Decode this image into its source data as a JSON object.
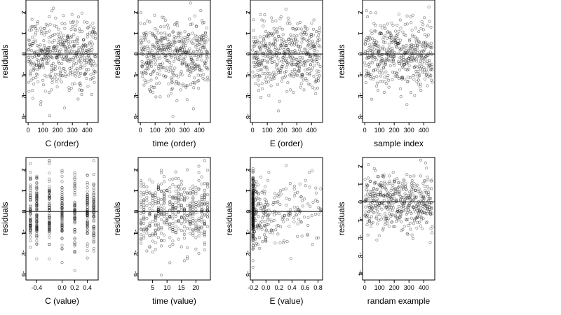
{
  "chart_data": [
    {
      "type": "scatter",
      "xlabel": "C (order)",
      "ylabel": "residuals",
      "x_ticks": [
        "0",
        "100",
        "200",
        "300",
        "400"
      ],
      "y_ticks": [
        "-3",
        "-2",
        "-1",
        "0",
        "1",
        "2"
      ],
      "xlim": [
        -15,
        475
      ],
      "ylim": [
        -3.3,
        2.6
      ],
      "ref_y": 0,
      "n": 460,
      "pattern": "index",
      "points": []
    },
    {
      "type": "scatter",
      "xlabel": "time (order)",
      "ylabel": "residuals",
      "x_ticks": [
        "0",
        "100",
        "200",
        "300",
        "400"
      ],
      "y_ticks": [
        "-3",
        "-2",
        "-1",
        "0",
        "1",
        "2"
      ],
      "xlim": [
        -15,
        475
      ],
      "ylim": [
        -3.3,
        2.6
      ],
      "ref_y": 0,
      "n": 460,
      "pattern": "index",
      "points": []
    },
    {
      "type": "scatter",
      "xlabel": "E (order)",
      "ylabel": "residuals",
      "x_ticks": [
        "0",
        "100",
        "200",
        "300",
        "400"
      ],
      "y_ticks": [
        "-3",
        "-2",
        "-1",
        "0",
        "1",
        "2"
      ],
      "xlim": [
        -15,
        475
      ],
      "ylim": [
        -3.3,
        2.6
      ],
      "ref_y": 0,
      "n": 460,
      "pattern": "index",
      "points": []
    },
    {
      "type": "scatter",
      "xlabel": "sample index",
      "ylabel": "residuals",
      "x_ticks": [
        "0",
        "100",
        "200",
        "300",
        "400"
      ],
      "y_ticks": [
        "-3",
        "-2",
        "-1",
        "0",
        "1",
        "2"
      ],
      "xlim": [
        -15,
        475
      ],
      "ylim": [
        -3.3,
        2.6
      ],
      "ref_y": 0,
      "n": 460,
      "pattern": "index",
      "points": []
    },
    {
      "type": "scatter",
      "xlabel": "C (value)",
      "ylabel": "residuals",
      "x_ticks": [
        "-0.4",
        "0.0",
        "0.2",
        "0.4"
      ],
      "y_ticks": [
        "-3",
        "-2",
        "-1",
        "0",
        "1",
        "2"
      ],
      "xlim": [
        -0.57,
        0.57
      ],
      "ylim": [
        -3.3,
        2.6
      ],
      "ref_y": 0,
      "n": 460,
      "pattern": "levels",
      "levels": [
        -0.5,
        -0.4,
        -0.2,
        0.0,
        0.2,
        0.4,
        0.5
      ],
      "points": []
    },
    {
      "type": "scatter",
      "xlabel": "time (value)",
      "ylabel": "residuals",
      "x_ticks": [
        "5",
        "10",
        "15",
        "20"
      ],
      "y_ticks": [
        "-3",
        "-2",
        "-1",
        "0",
        "1",
        "2"
      ],
      "xlim": [
        0,
        25
      ],
      "ylim": [
        -3.3,
        2.6
      ],
      "ref_y": 0,
      "n": 460,
      "pattern": "levels",
      "levels": [
        1,
        2,
        3,
        4,
        5,
        6,
        7,
        8,
        9,
        10,
        11,
        12,
        13,
        14,
        15,
        16,
        17,
        18,
        19,
        20,
        21,
        22,
        23,
        24
      ],
      "points": []
    },
    {
      "type": "scatter",
      "xlabel": "E (value)",
      "ylabel": "residuals",
      "x_ticks": [
        "-0.2",
        "0.0",
        "0.2",
        "0.4",
        "0.6",
        "0.8"
      ],
      "y_ticks": [
        "-3",
        "-2",
        "-1",
        "0",
        "1",
        "2"
      ],
      "xlim": [
        -0.24,
        0.87
      ],
      "ylim": [
        -3.3,
        2.6
      ],
      "ref_y": 0,
      "n": 460,
      "pattern": "skewed",
      "points": []
    },
    {
      "type": "scatter",
      "xlabel": "randam example",
      "ylabel": "residuals",
      "x_ticks": [
        "0",
        "100",
        "200",
        "300",
        "400"
      ],
      "y_ticks": [
        "-4",
        "-3",
        "-2",
        "-1",
        "0",
        "1",
        "2"
      ],
      "xlim": [
        -15,
        475
      ],
      "ylim": [
        -4.4,
        2.5
      ],
      "ref_y": 0,
      "n": 460,
      "pattern": "index",
      "points": []
    }
  ]
}
